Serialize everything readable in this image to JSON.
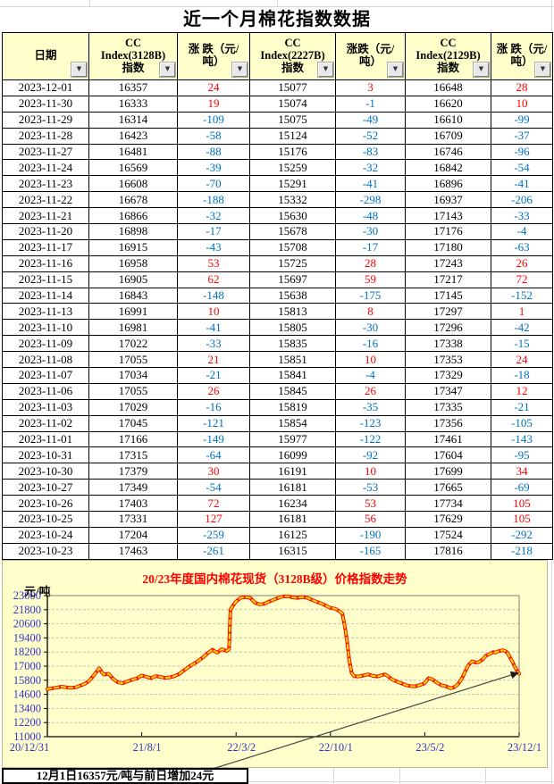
{
  "page": {
    "title": "近一个月棉花指数数据"
  },
  "icons": {
    "filter_dropdown": "▼"
  },
  "colors": {
    "positive": "#FF0000",
    "negative": "#0070C0",
    "header_bg": "#FFFFCC",
    "chart_bg": "#FFFFCC",
    "axis_label": "#3333CC",
    "series": "#FF0000",
    "series_overlay": "#FFD700",
    "chart_title": "#FF0000"
  },
  "table": {
    "columns": [
      {
        "id": "date",
        "lines": [
          "日期"
        ]
      },
      {
        "id": "idx3128",
        "lines": [
          "CC",
          "Index(3128B)",
          "指数"
        ]
      },
      {
        "id": "chg3128",
        "lines": [
          "涨 跌（元/",
          "吨）"
        ]
      },
      {
        "id": "idx2227",
        "lines": [
          "CC",
          "Index(2227B)",
          "指数"
        ]
      },
      {
        "id": "chg2227",
        "lines": [
          "涨跌（元/",
          "吨）"
        ]
      },
      {
        "id": "idx2129",
        "lines": [
          "CC",
          "Index(2129B)",
          "指数"
        ]
      },
      {
        "id": "chg2129",
        "lines": [
          "涨 跌（元/",
          "吨）"
        ]
      }
    ],
    "rows": [
      [
        "2023-12-01",
        16357,
        24,
        15077,
        3,
        16648,
        28
      ],
      [
        "2023-11-30",
        16333,
        19,
        15074,
        -1,
        16620,
        10
      ],
      [
        "2023-11-29",
        16314,
        -109,
        15075,
        -49,
        16610,
        -99
      ],
      [
        "2023-11-28",
        16423,
        -58,
        15124,
        -52,
        16709,
        -37
      ],
      [
        "2023-11-27",
        16481,
        -88,
        15176,
        -83,
        16746,
        -96
      ],
      [
        "2023-11-24",
        16569,
        -39,
        15259,
        -32,
        16842,
        -54
      ],
      [
        "2023-11-23",
        16608,
        -70,
        15291,
        -41,
        16896,
        -41
      ],
      [
        "2023-11-22",
        16678,
        -188,
        15332,
        -298,
        16937,
        -206
      ],
      [
        "2023-11-21",
        16866,
        -32,
        15630,
        -48,
        17143,
        -33
      ],
      [
        "2023-11-20",
        16898,
        -17,
        15678,
        -30,
        17176,
        -4
      ],
      [
        "2023-11-17",
        16915,
        -43,
        15708,
        -17,
        17180,
        -63
      ],
      [
        "2023-11-16",
        16958,
        53,
        15725,
        28,
        17243,
        26
      ],
      [
        "2023-11-15",
        16905,
        62,
        15697,
        59,
        17217,
        72
      ],
      [
        "2023-11-14",
        16843,
        -148,
        15638,
        -175,
        17145,
        -152
      ],
      [
        "2023-11-13",
        16991,
        10,
        15813,
        8,
        17297,
        1
      ],
      [
        "2023-11-10",
        16981,
        -41,
        15805,
        -30,
        17296,
        -42
      ],
      [
        "2023-11-09",
        17022,
        -33,
        15835,
        -16,
        17338,
        -15
      ],
      [
        "2023-11-08",
        17055,
        21,
        15851,
        10,
        17353,
        24
      ],
      [
        "2023-11-07",
        17034,
        -21,
        15841,
        -4,
        17329,
        -18
      ],
      [
        "2023-11-06",
        17055,
        26,
        15845,
        26,
        17347,
        12
      ],
      [
        "2023-11-03",
        17029,
        -16,
        15819,
        -35,
        17335,
        -21
      ],
      [
        "2023-11-02",
        17045,
        -121,
        15854,
        -123,
        17356,
        -105
      ],
      [
        "2023-11-01",
        17166,
        -149,
        15977,
        -122,
        17461,
        -143
      ],
      [
        "2023-10-31",
        17315,
        -64,
        16099,
        -92,
        17604,
        -95
      ],
      [
        "2023-10-30",
        17379,
        30,
        16191,
        10,
        17699,
        34
      ],
      [
        "2023-10-27",
        17349,
        -54,
        16181,
        -53,
        17665,
        -69
      ],
      [
        "2023-10-26",
        17403,
        72,
        16234,
        53,
        17734,
        105
      ],
      [
        "2023-10-25",
        17331,
        127,
        16181,
        56,
        17629,
        105
      ],
      [
        "2023-10-24",
        17204,
        -259,
        16125,
        -190,
        17524,
        -292
      ],
      [
        "2023-10-23",
        17463,
        -261,
        16315,
        -165,
        17816,
        -218
      ]
    ]
  },
  "chart_data": {
    "type": "line",
    "title": "20/23年度国内棉花现货（3128B级）价格指数走势",
    "y_axis_unit": "元/吨",
    "ylim": [
      11000,
      23000
    ],
    "y_ticks": [
      11000,
      12200,
      13400,
      14600,
      15800,
      17000,
      18200,
      19400,
      20600,
      21800,
      23000
    ],
    "x_ticks": [
      "20/12/31",
      "21/8/1",
      "22/3/2",
      "22/10/1",
      "23/5/2",
      "23/12/1"
    ],
    "grid": "horizontal-dashed",
    "series": [
      {
        "name": "CC Index(3128B)",
        "points": [
          [
            0.0,
            15050
          ],
          [
            0.01,
            15120
          ],
          [
            0.02,
            15180
          ],
          [
            0.03,
            15250
          ],
          [
            0.04,
            15200
          ],
          [
            0.05,
            15150
          ],
          [
            0.06,
            15200
          ],
          [
            0.07,
            15350
          ],
          [
            0.08,
            15500
          ],
          [
            0.09,
            15800
          ],
          [
            0.1,
            16300
          ],
          [
            0.11,
            16820
          ],
          [
            0.115,
            16500
          ],
          [
            0.12,
            16280
          ],
          [
            0.13,
            16350
          ],
          [
            0.14,
            15900
          ],
          [
            0.15,
            15620
          ],
          [
            0.16,
            15560
          ],
          [
            0.17,
            15700
          ],
          [
            0.18,
            15850
          ],
          [
            0.19,
            15950
          ],
          [
            0.2,
            16200
          ],
          [
            0.21,
            16100
          ],
          [
            0.22,
            15980
          ],
          [
            0.23,
            16150
          ],
          [
            0.24,
            16080
          ],
          [
            0.25,
            16000
          ],
          [
            0.26,
            16050
          ],
          [
            0.27,
            16150
          ],
          [
            0.28,
            16350
          ],
          [
            0.29,
            16650
          ],
          [
            0.3,
            16950
          ],
          [
            0.31,
            17200
          ],
          [
            0.32,
            17450
          ],
          [
            0.33,
            17750
          ],
          [
            0.34,
            18100
          ],
          [
            0.35,
            18400
          ],
          [
            0.355,
            18250
          ],
          [
            0.36,
            18150
          ],
          [
            0.365,
            18300
          ],
          [
            0.37,
            18450
          ],
          [
            0.375,
            18350
          ],
          [
            0.38,
            18300
          ],
          [
            0.385,
            18400
          ],
          [
            0.388,
            21800
          ],
          [
            0.395,
            22250
          ],
          [
            0.4,
            22500
          ],
          [
            0.41,
            22820
          ],
          [
            0.42,
            22880
          ],
          [
            0.43,
            22800
          ],
          [
            0.44,
            22400
          ],
          [
            0.45,
            22250
          ],
          [
            0.46,
            22300
          ],
          [
            0.47,
            22500
          ],
          [
            0.48,
            22650
          ],
          [
            0.49,
            22800
          ],
          [
            0.5,
            22930
          ],
          [
            0.51,
            22950
          ],
          [
            0.52,
            22850
          ],
          [
            0.53,
            22800
          ],
          [
            0.54,
            22880
          ],
          [
            0.55,
            22820
          ],
          [
            0.56,
            22650
          ],
          [
            0.57,
            22480
          ],
          [
            0.58,
            22350
          ],
          [
            0.59,
            22150
          ],
          [
            0.6,
            21950
          ],
          [
            0.61,
            21880
          ],
          [
            0.62,
            21650
          ],
          [
            0.625,
            21500
          ],
          [
            0.63,
            20500
          ],
          [
            0.635,
            19200
          ],
          [
            0.64,
            17500
          ],
          [
            0.645,
            16400
          ],
          [
            0.65,
            16150
          ],
          [
            0.66,
            16120
          ],
          [
            0.67,
            16200
          ],
          [
            0.68,
            16300
          ],
          [
            0.69,
            16180
          ],
          [
            0.7,
            16120
          ],
          [
            0.71,
            16250
          ],
          [
            0.715,
            16300
          ],
          [
            0.72,
            16200
          ],
          [
            0.73,
            15880
          ],
          [
            0.74,
            15700
          ],
          [
            0.75,
            15550
          ],
          [
            0.76,
            15380
          ],
          [
            0.77,
            15300
          ],
          [
            0.78,
            15280
          ],
          [
            0.79,
            15400
          ],
          [
            0.8,
            15550
          ],
          [
            0.808,
            15980
          ],
          [
            0.815,
            15900
          ],
          [
            0.825,
            15600
          ],
          [
            0.835,
            15380
          ],
          [
            0.845,
            15280
          ],
          [
            0.855,
            15120
          ],
          [
            0.862,
            15200
          ],
          [
            0.87,
            15450
          ],
          [
            0.878,
            15900
          ],
          [
            0.885,
            16500
          ],
          [
            0.892,
            17050
          ],
          [
            0.9,
            17400
          ],
          [
            0.908,
            17300
          ],
          [
            0.915,
            17350
          ],
          [
            0.922,
            17550
          ],
          [
            0.93,
            17900
          ],
          [
            0.938,
            18050
          ],
          [
            0.945,
            18200
          ],
          [
            0.95,
            18150
          ],
          [
            0.955,
            18250
          ],
          [
            0.96,
            18300
          ],
          [
            0.965,
            18350
          ],
          [
            0.97,
            18300
          ],
          [
            0.975,
            18150
          ],
          [
            0.98,
            17800
          ],
          [
            0.985,
            17450
          ],
          [
            0.99,
            17000
          ],
          [
            0.995,
            16650
          ],
          [
            1.0,
            16357
          ]
        ]
      }
    ],
    "annotation": {
      "text": "12月1日16357元/吨与前日增加24元",
      "target_x": 1.0,
      "target_value": 16357
    }
  },
  "footer": {
    "note": "12月1日16357元/吨与前日增加24元"
  }
}
